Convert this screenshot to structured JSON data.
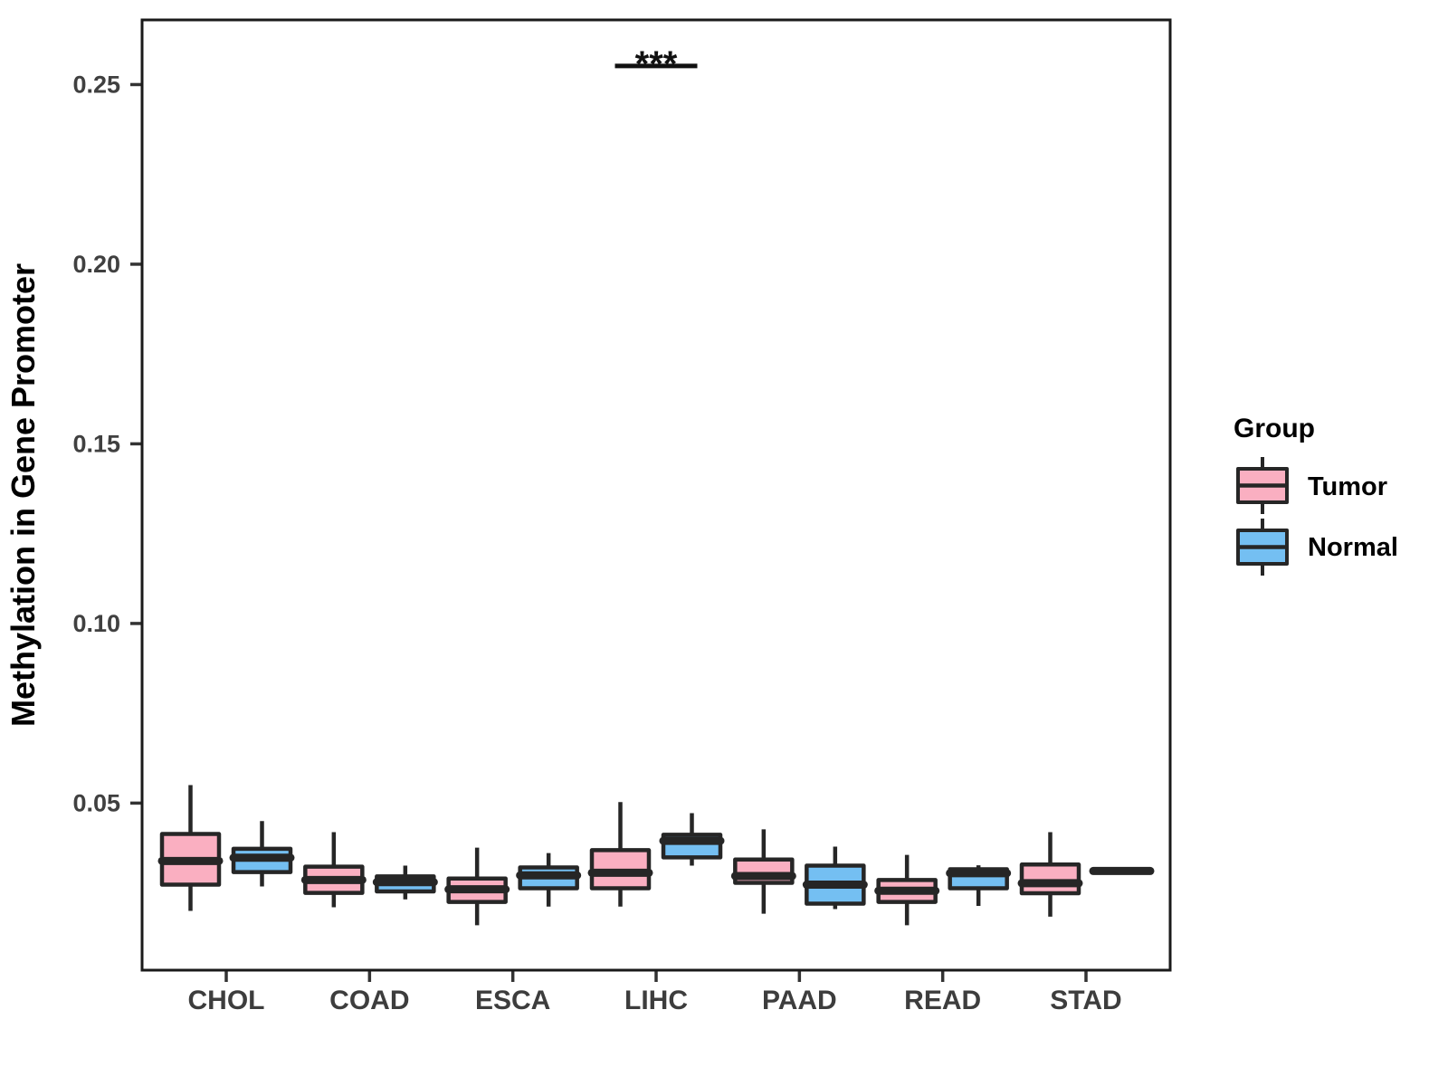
{
  "chart_data": {
    "type": "boxplot",
    "title": "",
    "xlabel": "",
    "ylabel": "Methylation in Gene Promoter",
    "categories": [
      "CHOL",
      "COAD",
      "ESCA",
      "LIHC",
      "PAAD",
      "READ",
      "STAD"
    ],
    "yticks": [
      0.05,
      0.1,
      0.15,
      0.2,
      0.25
    ],
    "ytick_labels": [
      "0.05",
      "0.10",
      "0.15",
      "0.20",
      "0.25"
    ],
    "ylim": [
      0.0035,
      0.268
    ],
    "grid": false,
    "legend_position": "right",
    "series": [
      {
        "name": "Tumor",
        "color": "#FAAFC1",
        "stats": [
          {
            "min": 0.02,
            "q1": 0.0273,
            "median": 0.0339,
            "q3": 0.0414,
            "max": 0.055
          },
          {
            "min": 0.021,
            "q1": 0.025,
            "median": 0.0286,
            "q3": 0.0323,
            "max": 0.0419
          },
          {
            "min": 0.016,
            "q1": 0.0225,
            "median": 0.026,
            "q3": 0.029,
            "max": 0.0376
          },
          {
            "min": 0.0212,
            "q1": 0.0263,
            "median": 0.0306,
            "q3": 0.0369,
            "max": 0.0503
          },
          {
            "min": 0.0192,
            "q1": 0.0278,
            "median": 0.0297,
            "q3": 0.0343,
            "max": 0.0427
          },
          {
            "min": 0.016,
            "q1": 0.0225,
            "median": 0.0256,
            "q3": 0.0286,
            "max": 0.0356
          },
          {
            "min": 0.0184,
            "q1": 0.0249,
            "median": 0.0277,
            "q3": 0.0329,
            "max": 0.0419
          }
        ]
      },
      {
        "name": "Normal",
        "color": "#74BFF2",
        "stats": [
          {
            "min": 0.0268,
            "q1": 0.0308,
            "median": 0.0348,
            "q3": 0.0373,
            "max": 0.045
          },
          {
            "min": 0.0232,
            "q1": 0.0254,
            "median": 0.028,
            "q3": 0.0296,
            "max": 0.0326
          },
          {
            "min": 0.0212,
            "q1": 0.0263,
            "median": 0.0299,
            "q3": 0.0321,
            "max": 0.0361
          },
          {
            "min": 0.0326,
            "q1": 0.0349,
            "median": 0.0395,
            "q3": 0.0412,
            "max": 0.0472
          },
          {
            "min": 0.0205,
            "q1": 0.022,
            "median": 0.0273,
            "q3": 0.0326,
            "max": 0.0379
          },
          {
            "min": 0.0214,
            "q1": 0.0263,
            "median": 0.0305,
            "q3": 0.0316,
            "max": 0.0327
          },
          {
            "min": 0.0311,
            "q1": 0.0311,
            "median": 0.0311,
            "q3": 0.0311,
            "max": 0.0311
          }
        ]
      }
    ],
    "annotation": {
      "text": "***",
      "category": "LIHC",
      "y": 0.2552
    }
  },
  "legend": {
    "title": "Group",
    "entries": [
      {
        "label": "Tumor",
        "color": "#FAAFC1"
      },
      {
        "label": "Normal",
        "color": "#74BFF2"
      }
    ]
  },
  "colors": {
    "box_stroke": "#262626",
    "panel_border": "#1a1a1a",
    "tick": "#333333",
    "axis_text": "#404040"
  }
}
